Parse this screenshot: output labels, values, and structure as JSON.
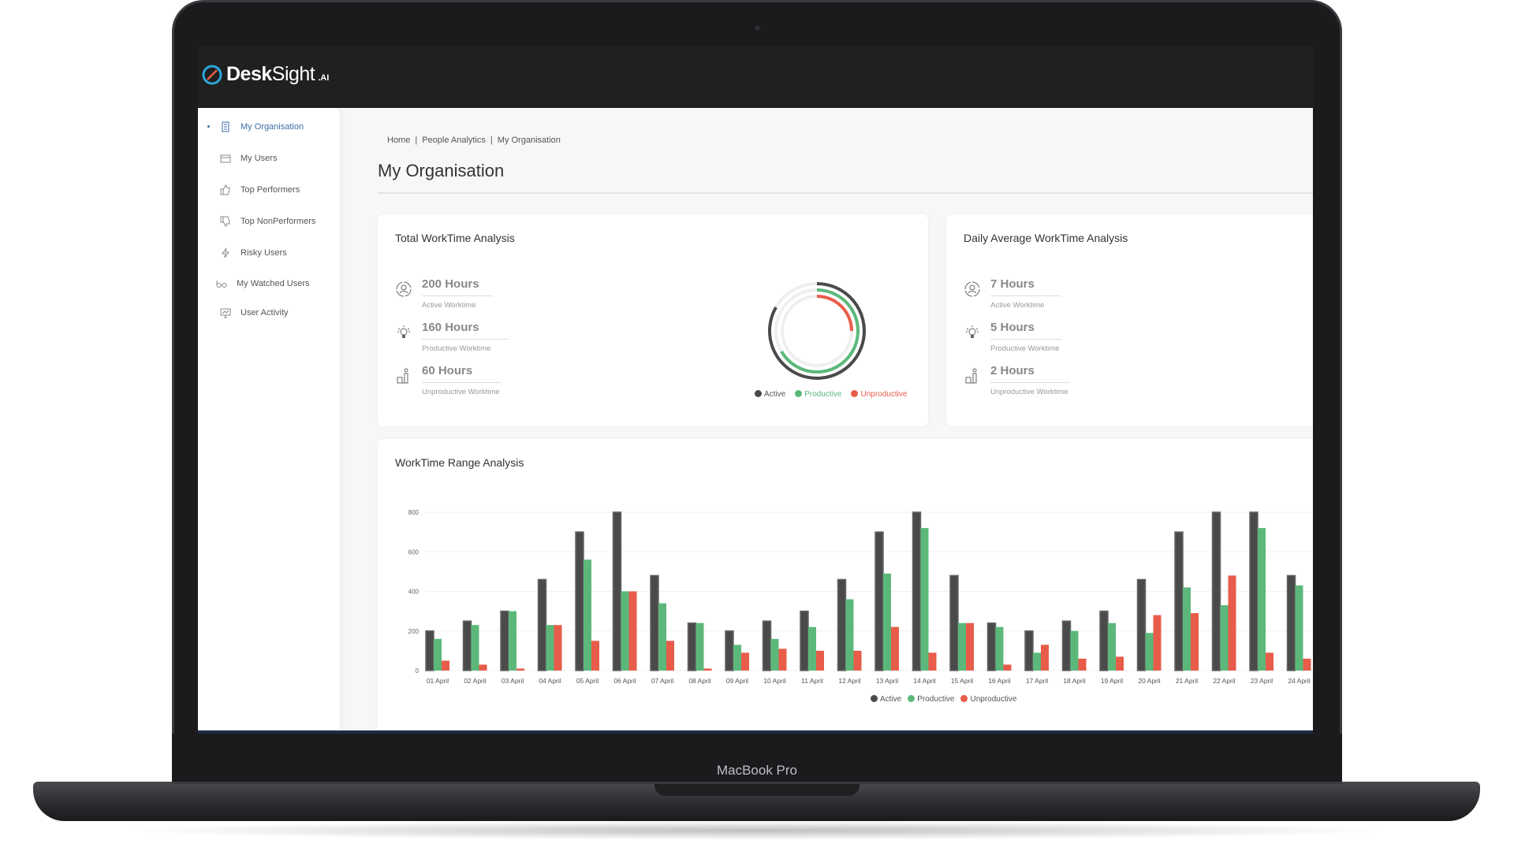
{
  "app": {
    "brand_bold": "Desk",
    "brand_light": "Sight",
    "brand_suffix": ".AI"
  },
  "device_label": "MacBook Pro",
  "sidebar": {
    "items": [
      {
        "label": "My Organisation",
        "icon": "building-icon",
        "active": true
      },
      {
        "label": "My Users",
        "icon": "users-icon"
      },
      {
        "label": "Top Performers",
        "icon": "thumbs-up-icon"
      },
      {
        "label": "Top NonPerformers",
        "icon": "thumbs-down-icon"
      },
      {
        "label": "Risky Users",
        "icon": "lightning-icon"
      },
      {
        "label": "My Watched Users",
        "icon": "glasses-icon"
      },
      {
        "label": "User Activity",
        "icon": "monitor-chart-icon"
      }
    ]
  },
  "breadcrumb": [
    "Home",
    "People Analytics",
    "My Organisation"
  ],
  "page_title": "My Organisation",
  "total_card": {
    "title": "Total WorkTime Analysis",
    "stats": [
      {
        "value": "200 Hours",
        "label": "Active Worktime"
      },
      {
        "value": "160 Hours",
        "label": "Productive Worktime"
      },
      {
        "value": "60 Hours",
        "label": "Unproductive Worktime"
      }
    ]
  },
  "daily_card": {
    "title": "Daily Average WorkTime Analysis",
    "stats": [
      {
        "value": "7 Hours",
        "label": "Active Worktime"
      },
      {
        "value": "5 Hours",
        "label": "Productive Worktime"
      },
      {
        "value": "2 Hours",
        "label": "Unproductive Worktime"
      }
    ]
  },
  "colors": {
    "active": "#4a4a4a",
    "productive": "#5cb87a",
    "unproductive": "#e85c4a",
    "accent": "#3b6fa8"
  },
  "chart_data": [
    {
      "type": "pie",
      "subtype": "radial-bar",
      "series": [
        {
          "name": "Active",
          "value": 200
        },
        {
          "name": "Productive",
          "value": 160
        },
        {
          "name": "Unproductive",
          "value": 60
        }
      ],
      "max": 240,
      "legend": [
        "Active",
        "Productive",
        "Unproductive"
      ],
      "legend_position": "bottom"
    },
    {
      "type": "bar",
      "title": "WorkTime Range Analysis",
      "grid": true,
      "ylim": [
        0,
        800
      ],
      "yticks": [
        0,
        200,
        400,
        600,
        800
      ],
      "legend_position": "bottom",
      "categories": [
        "01 April",
        "02 April",
        "03 April",
        "04 April",
        "05 April",
        "06 April",
        "07 April",
        "08 April",
        "09 April",
        "10 April",
        "11 April",
        "12 April",
        "13 April",
        "14 April",
        "15 April",
        "16 April",
        "17 April",
        "18 April",
        "19 April",
        "20 April",
        "21 April",
        "22 April",
        "23 April",
        "24 April"
      ],
      "series": [
        {
          "name": "Active",
          "values": [
            200,
            250,
            300,
            460,
            700,
            800,
            480,
            240,
            200,
            250,
            300,
            460,
            700,
            800,
            480,
            240,
            200,
            250,
            300,
            460,
            700,
            800,
            800,
            480
          ]
        },
        {
          "name": "Productive",
          "values": [
            160,
            230,
            300,
            230,
            560,
            400,
            340,
            240,
            130,
            160,
            220,
            360,
            490,
            720,
            240,
            220,
            90,
            200,
            240,
            190,
            420,
            330,
            720,
            430
          ]
        },
        {
          "name": "Unproductive",
          "values": [
            50,
            30,
            10,
            230,
            150,
            400,
            150,
            10,
            90,
            110,
            100,
            100,
            220,
            90,
            240,
            30,
            130,
            60,
            70,
            280,
            290,
            480,
            90,
            60
          ]
        }
      ]
    }
  ]
}
